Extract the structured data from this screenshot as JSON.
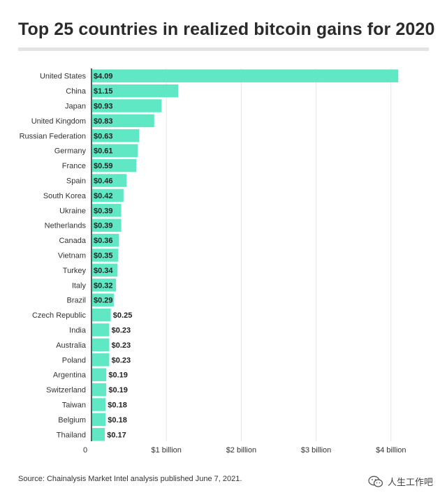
{
  "title": "Top 25 countries in realized bitcoin gains for 2020",
  "source": "Source: Chainalysis Market Intel analysis published June 7, 2021.",
  "watermark": {
    "text": "人生工作吧",
    "icon": "wechat-icon"
  },
  "colors": {
    "bar": "#5fe8c3",
    "grid": "#e6e6e6",
    "title_rule": "#e3e3e3"
  },
  "chart_data": {
    "type": "bar",
    "orientation": "horizontal",
    "title": "Top 25 countries in realized bitcoin gains for 2020",
    "xlabel": "",
    "ylabel": "",
    "xlim": [
      0,
      4.3
    ],
    "grid": true,
    "x_ticks": [
      {
        "value": 0,
        "label": "0"
      },
      {
        "value": 1,
        "label": "$1 billion"
      },
      {
        "value": 2,
        "label": "$2 billion"
      },
      {
        "value": 3,
        "label": "$3 billion"
      },
      {
        "value": 4,
        "label": "$4 billion"
      }
    ],
    "categories": [
      "United States",
      "China",
      "Japan",
      "United Kingdom",
      "Russian Federation",
      "Germany",
      "France",
      "Spain",
      "South Korea",
      "Ukraine",
      "Netherlands",
      "Canada",
      "Vietnam",
      "Turkey",
      "Italy",
      "Brazil",
      "Czech Republic",
      "India",
      "Australia",
      "Poland",
      "Argentina",
      "Switzerland",
      "Taiwan",
      "Belgium",
      "Thailand"
    ],
    "values": [
      4.09,
      1.15,
      0.93,
      0.83,
      0.63,
      0.61,
      0.59,
      0.46,
      0.42,
      0.39,
      0.39,
      0.36,
      0.35,
      0.34,
      0.32,
      0.29,
      0.25,
      0.23,
      0.23,
      0.23,
      0.19,
      0.19,
      0.18,
      0.18,
      0.17
    ],
    "value_labels": [
      "$4.09",
      "$1.15",
      "$0.93",
      "$0.83",
      "$0.63",
      "$0.61",
      "$0.59",
      "$0.46",
      "$0.42",
      "$0.39",
      "$0.39",
      "$0.36",
      "$0.35",
      "$0.34",
      "$0.32",
      "$0.29",
      "$0.25",
      "$0.23",
      "$0.23",
      "$0.23",
      "$0.19",
      "$0.19",
      "$0.18",
      "$0.18",
      "$0.17"
    ]
  }
}
